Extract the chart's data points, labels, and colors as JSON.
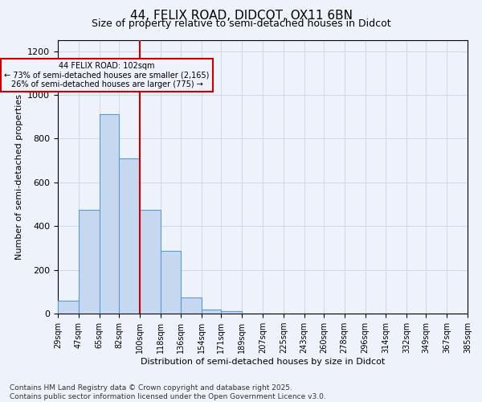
{
  "title": "44, FELIX ROAD, DIDCOT, OX11 6BN",
  "subtitle": "Size of property relative to semi-detached houses in Didcot",
  "xlabel": "Distribution of semi-detached houses by size in Didcot",
  "ylabel": "Number of semi-detached properties",
  "bar_color": "#c5d8f0",
  "bar_edge_color": "#5b9bd5",
  "annotation_line1": "44 FELIX ROAD: 102sqm",
  "annotation_line2": "← 73% of semi-detached houses are smaller (2,165)",
  "annotation_line3": "26% of semi-detached houses are larger (775) →",
  "vline_x": 100,
  "vline_color": "#cc0000",
  "bin_edges": [
    29,
    47,
    65,
    82,
    100,
    118,
    136,
    154,
    171,
    189,
    207,
    225,
    243,
    260,
    278,
    296,
    314,
    332,
    349,
    367,
    385
  ],
  "bar_heights": [
    60,
    475,
    910,
    710,
    475,
    285,
    75,
    20,
    10,
    0,
    0,
    0,
    0,
    0,
    0,
    0,
    0,
    0,
    0,
    0
  ],
  "tick_labels": [
    "29sqm",
    "47sqm",
    "65sqm",
    "82sqm",
    "100sqm",
    "118sqm",
    "136sqm",
    "154sqm",
    "171sqm",
    "189sqm",
    "207sqm",
    "225sqm",
    "243sqm",
    "260sqm",
    "278sqm",
    "296sqm",
    "314sqm",
    "332sqm",
    "349sqm",
    "367sqm",
    "385sqm"
  ],
  "ylim": [
    0,
    1250
  ],
  "yticks": [
    0,
    200,
    400,
    600,
    800,
    1000,
    1200
  ],
  "footer_text": "Contains HM Land Registry data © Crown copyright and database right 2025.\nContains public sector information licensed under the Open Government Licence v3.0.",
  "bg_color": "#eef2fa",
  "grid_color": "#d0d8e8",
  "title_fontsize": 11,
  "subtitle_fontsize": 9,
  "axis_label_fontsize": 8,
  "tick_fontsize": 7,
  "footer_fontsize": 6.5,
  "annot_fontsize": 7
}
